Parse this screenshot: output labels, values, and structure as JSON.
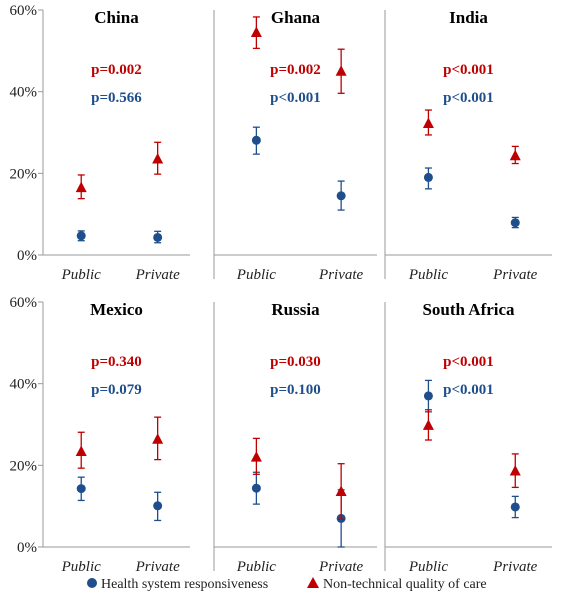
{
  "chart_data": {
    "type": "scatter",
    "y_ticks": [
      "0%",
      "20%",
      "40%",
      "60%"
    ],
    "ylim": [
      0,
      60
    ],
    "categories": [
      "Public",
      "Private"
    ],
    "colors": {
      "responsiveness": "#1f4e8c",
      "quality": "#c00000"
    },
    "legend": {
      "placement": "bottom",
      "items": [
        {
          "name": "Health system responsiveness",
          "color": "#1f4e8c",
          "marker": "circle"
        },
        {
          "name": "Non-technical quality of care",
          "color": "#c00000",
          "marker": "triangle"
        }
      ]
    },
    "panels": [
      {
        "title": "China",
        "p_quality": "p=0.002",
        "p_responsiveness": "p=0.566",
        "responsiveness": [
          {
            "value": 4.7,
            "low": 3.5,
            "high": 5.9
          },
          {
            "value": 4.3,
            "low": 3.0,
            "high": 5.8
          }
        ],
        "quality": [
          {
            "value": 16.5,
            "low": 13.8,
            "high": 19.6
          },
          {
            "value": 23.5,
            "low": 19.8,
            "high": 27.6
          }
        ]
      },
      {
        "title": "Ghana",
        "p_quality": "p=0.002",
        "p_responsiveness": "p<0.001",
        "responsiveness": [
          {
            "value": 28.1,
            "low": 24.7,
            "high": 31.3
          },
          {
            "value": 14.5,
            "low": 11.0,
            "high": 18.1
          }
        ],
        "quality": [
          {
            "value": 54.5,
            "low": 50.6,
            "high": 58.3
          },
          {
            "value": 45.0,
            "low": 39.6,
            "high": 50.4
          }
        ]
      },
      {
        "title": "India",
        "p_quality": "p<0.001",
        "p_responsiveness": "p<0.001",
        "responsiveness": [
          {
            "value": 19.0,
            "low": 16.2,
            "high": 21.3
          },
          {
            "value": 7.9,
            "low": 6.7,
            "high": 9.2
          }
        ],
        "quality": [
          {
            "value": 32.2,
            "low": 29.4,
            "high": 35.5
          },
          {
            "value": 24.3,
            "low": 22.4,
            "high": 26.6
          }
        ]
      },
      {
        "title": "Mexico",
        "p_quality": "p=0.340",
        "p_responsiveness": "p=0.079",
        "responsiveness": [
          {
            "value": 14.3,
            "low": 11.4,
            "high": 17.1
          },
          {
            "value": 10.1,
            "low": 6.5,
            "high": 13.4
          }
        ],
        "quality": [
          {
            "value": 23.4,
            "low": 19.3,
            "high": 28.1
          },
          {
            "value": 26.4,
            "low": 21.4,
            "high": 31.8
          }
        ]
      },
      {
        "title": "Russia",
        "p_quality": "p=0.030",
        "p_responsiveness": "p=0.100",
        "responsiveness": [
          {
            "value": 14.4,
            "low": 10.5,
            "high": 18.3
          },
          {
            "value": 7.0,
            "low": 0.0,
            "high": 14.0
          }
        ],
        "quality": [
          {
            "value": 22.0,
            "low": 17.8,
            "high": 26.6
          },
          {
            "value": 13.6,
            "low": 6.8,
            "high": 20.4
          }
        ]
      },
      {
        "title": "South Africa",
        "p_quality": "p<0.001",
        "p_responsiveness": "p<0.001",
        "responsiveness": [
          {
            "value": 37.0,
            "low": 33.1,
            "high": 40.8
          },
          {
            "value": 9.8,
            "low": 7.2,
            "high": 12.4
          }
        ],
        "quality": [
          {
            "value": 29.8,
            "low": 26.2,
            "high": 33.6
          },
          {
            "value": 18.6,
            "low": 14.6,
            "high": 22.8
          }
        ]
      }
    ]
  }
}
